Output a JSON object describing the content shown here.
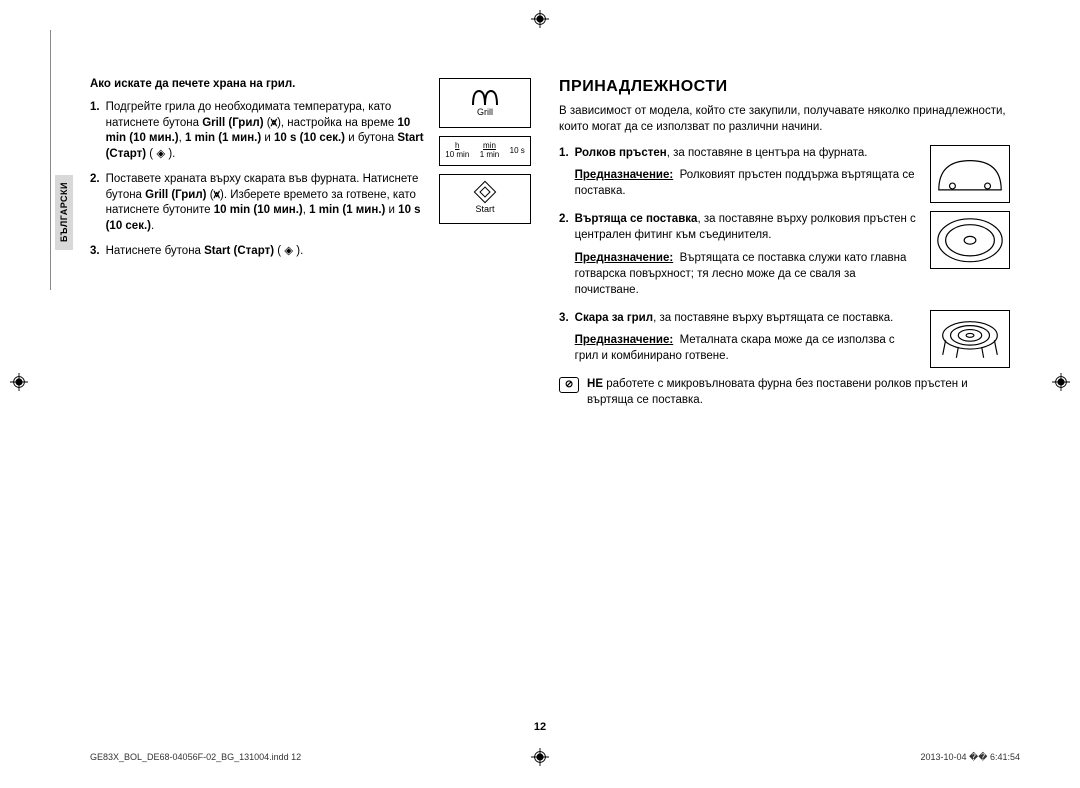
{
  "side_tab": "БЪЛГАРСКИ",
  "left": {
    "intro": "Ако искате да печете храна на грил.",
    "steps": [
      {
        "n": "1.",
        "html": "Подгрейте грила до необходимата температура, като натиснете бутона <b>Grill (Грил)</b> (<b>⩙</b>), настройка на време <b>10 min (10 мин.)</b>, <b>1 min (1 мин.)</b> и <b>10 s (10 сек.)</b> и бутона <b>Start (Старт)</b> ( ◈ )."
      },
      {
        "n": "2.",
        "html": "Поставете храната върху скарата във фурната. Натиснете бутона <b>Grill (Грил)</b> (<b>⩙</b>). Изберете времето за готвене, като натиснете бутоните <b>10 min (10 мин.)</b>, <b>1 min (1 мин.)</b> и <b>10 s (10 сек.)</b>."
      },
      {
        "n": "3.",
        "html": "Натиснете бутона <b>Start (Старт)</b> ( ◈ )."
      }
    ],
    "grill_label": "Grill",
    "time_labels": {
      "h": "h",
      "h_sub": "10 min",
      "min": "min",
      "min_sub": "1 min",
      "s": "10 s"
    },
    "start_label": "Start"
  },
  "right": {
    "title": "ПРИНАДЛЕЖНОСТИ",
    "intro": "В зависимост от модела, който сте закупили, получавате няколко принадлежности, които могат да се използват по различни начини.",
    "items": [
      {
        "n": "1.",
        "name": "Ролков пръстен",
        "desc": ", за поставяне в центъра на фурната.",
        "purpose": "Ролковият пръстен поддържа въртящата се поставка."
      },
      {
        "n": "2.",
        "name": "Въртяща се поставка",
        "desc": ", за поставяне върху ролковия пръстен с централен фитинг към съединителя.",
        "purpose": "Въртящата се поставка служи като главна готварска повърхност; тя лесно може да се сваля за почистване."
      },
      {
        "n": "3.",
        "name": "Скара за грил",
        "desc": ", за поставяне върху въртящата се поставка.",
        "purpose": "Металната скара може да се използва с грил и комбинирано готвене."
      }
    ],
    "purpose_label": "Предназначение:",
    "warning": "<b>НЕ</b> работете с микровълновата фурна без поставени ролков пръстен и въртяща се поставка."
  },
  "page_number": "12",
  "footer_left": "GE83X_BOL_DE68-04056F-02_BG_131004.indd   12",
  "footer_right": "2013-10-04   �� 6:41:54"
}
